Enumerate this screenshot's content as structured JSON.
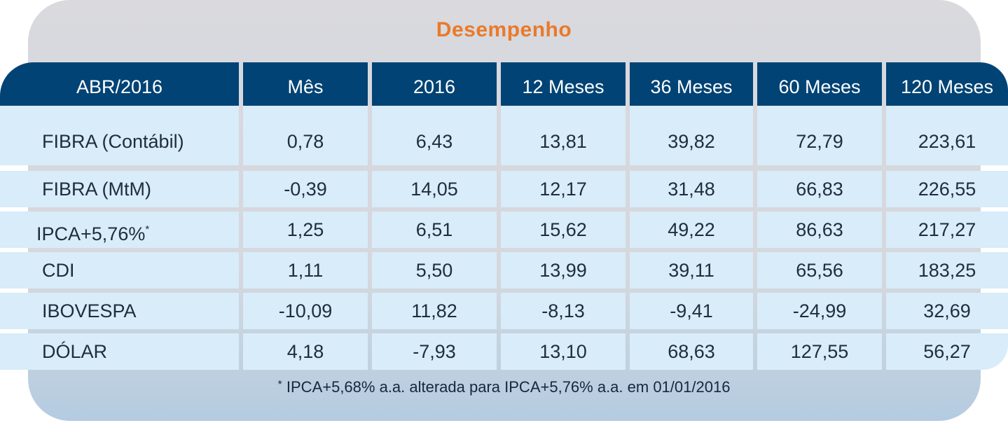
{
  "title": "Desempenho",
  "table": {
    "headers": [
      "ABR/2016",
      "Mês",
      "2016",
      "12 Meses",
      "36 Meses",
      "60 Meses",
      "120 Meses"
    ],
    "rows": [
      {
        "label": "FIBRA (Contábil)",
        "values": [
          "0,78",
          "6,43",
          "13,81",
          "39,82",
          "72,79",
          "223,61"
        ]
      },
      {
        "label": "FIBRA (MtM)",
        "values": [
          "-0,39",
          "14,05",
          "12,17",
          "31,48",
          "66,83",
          "226,55"
        ]
      },
      {
        "label": "IPCA+5,76%",
        "label_sup": "*",
        "values": [
          "1,25",
          "6,51",
          "15,62",
          "49,22",
          "86,63",
          "217,27"
        ]
      },
      {
        "label": "CDI",
        "values": [
          "1,11",
          "5,50",
          "13,99",
          "39,11",
          "65,56",
          "183,25"
        ]
      },
      {
        "label": "IBOVESPA",
        "values": [
          "-10,09",
          "11,82",
          "-8,13",
          "-9,41",
          "-24,99",
          "32,69"
        ]
      },
      {
        "label": "DÓLAR",
        "values": [
          "4,18",
          "-7,93",
          "13,10",
          "68,63",
          "127,55",
          "56,27"
        ]
      }
    ]
  },
  "footnote": {
    "marker": "*",
    "text": " IPCA+5,68% a.a. alterada para IPCA+5,76% a.a. em 01/01/2016"
  },
  "colors": {
    "header_bg": "#004374",
    "row_bg": "#d8ecf9",
    "title": "#e97a2a",
    "card_bg": "#d9d9de"
  }
}
